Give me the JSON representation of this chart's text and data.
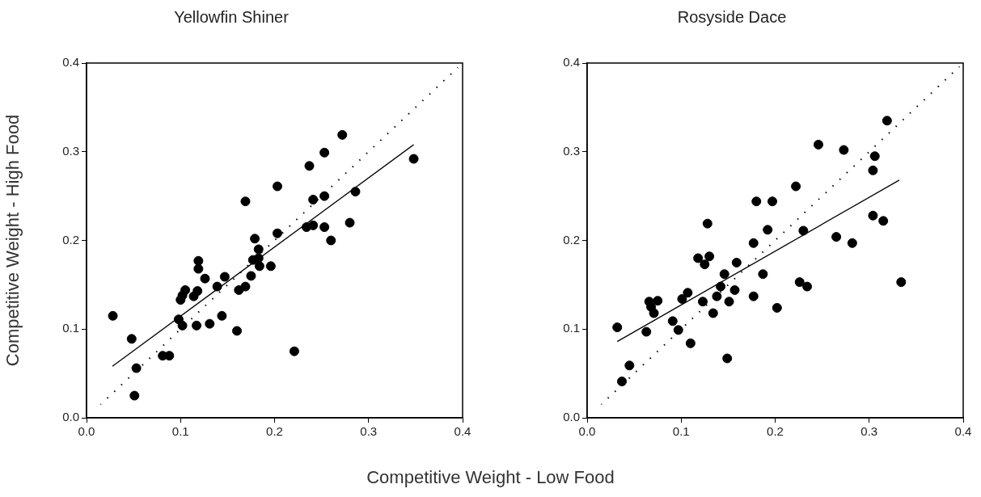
{
  "chart_data": [
    {
      "type": "scatter",
      "title": "Yellowfin Shiner",
      "ylabel": "Competitive Weight - High Food",
      "xlabel": "Competitive Weight - Low Food",
      "xlim": [
        0,
        0.4
      ],
      "ylim": [
        0,
        0.4
      ],
      "xticks": [
        {
          "value": 0,
          "label": "0.0"
        },
        0.1,
        0.2,
        0.3,
        0.4
      ],
      "yticks": [
        {
          "value": 0,
          "label": "0.0"
        },
        0.1,
        0.2,
        0.3,
        0.4
      ],
      "grid": false,
      "legend": false,
      "series": [
        {
          "type": "scatter",
          "marker": "circle",
          "color": "#000000",
          "x": [
            0.028,
            0.048,
            0.053,
            0.051,
            0.081,
            0.088,
            0.098,
            0.102,
            0.117,
            0.131,
            0.144,
            0.16,
            0.1,
            0.102,
            0.105,
            0.114,
            0.118,
            0.119,
            0.119,
            0.126,
            0.139,
            0.147,
            0.162,
            0.169,
            0.175,
            0.177,
            0.183,
            0.183,
            0.179,
            0.184,
            0.196,
            0.169,
            0.203,
            0.203,
            0.237,
            0.253,
            0.272,
            0.348,
            0.241,
            0.253,
            0.286,
            0.234,
            0.241,
            0.253,
            0.28,
            0.26,
            0.221
          ],
          "values": [
            0.115,
            0.089,
            0.056,
            0.025,
            0.07,
            0.07,
            0.111,
            0.104,
            0.104,
            0.106,
            0.115,
            0.098,
            0.133,
            0.138,
            0.144,
            0.137,
            0.143,
            0.168,
            0.177,
            0.157,
            0.148,
            0.159,
            0.144,
            0.148,
            0.16,
            0.178,
            0.18,
            0.19,
            0.202,
            0.171,
            0.171,
            0.244,
            0.261,
            0.208,
            0.284,
            0.299,
            0.319,
            0.292,
            0.246,
            0.25,
            0.255,
            0.215,
            0.217,
            0.215,
            0.22,
            0.2,
            0.075
          ]
        },
        {
          "type": "line",
          "marker": "none",
          "color": "#000000",
          "line_style": "solid",
          "x": [
            0.0275,
            0.348
          ],
          "values": [
            0.058,
            0.308
          ]
        },
        {
          "type": "line",
          "marker": "none",
          "color": "#000000",
          "line_style": "dotted",
          "x": [
            0.015,
            0.395
          ],
          "values": [
            0.015,
            0.395
          ]
        }
      ]
    },
    {
      "type": "scatter",
      "title": "Rosyside Dace",
      "xlim": [
        0,
        0.4
      ],
      "ylim": [
        0,
        0.4
      ],
      "xticks": [
        {
          "value": 0,
          "label": "0.0"
        },
        0.1,
        0.2,
        0.3,
        0.4
      ],
      "yticks": [
        {
          "value": 0,
          "label": "0.0"
        },
        0.1,
        0.2,
        0.3,
        0.4
      ],
      "grid": false,
      "legend": false,
      "series": [
        {
          "type": "scatter",
          "marker": "circle",
          "color": "#000000",
          "x": [
            0.032,
            0.037,
            0.045,
            0.063,
            0.066,
            0.075,
            0.071,
            0.068,
            0.091,
            0.097,
            0.101,
            0.107,
            0.11,
            0.118,
            0.125,
            0.13,
            0.128,
            0.123,
            0.134,
            0.138,
            0.142,
            0.146,
            0.151,
            0.149,
            0.157,
            0.159,
            0.177,
            0.177,
            0.187,
            0.192,
            0.18,
            0.197,
            0.202,
            0.222,
            0.23,
            0.226,
            0.234,
            0.246,
            0.265,
            0.273,
            0.282,
            0.306,
            0.304,
            0.304,
            0.315,
            0.334,
            0.319
          ],
          "values": [
            0.102,
            0.041,
            0.059,
            0.097,
            0.131,
            0.132,
            0.118,
            0.125,
            0.109,
            0.099,
            0.134,
            0.141,
            0.084,
            0.18,
            0.173,
            0.182,
            0.219,
            0.131,
            0.118,
            0.137,
            0.148,
            0.162,
            0.131,
            0.067,
            0.144,
            0.175,
            0.137,
            0.197,
            0.162,
            0.212,
            0.244,
            0.244,
            0.124,
            0.261,
            0.211,
            0.153,
            0.148,
            0.308,
            0.204,
            0.302,
            0.197,
            0.295,
            0.279,
            0.228,
            0.222,
            0.153,
            0.335
          ]
        },
        {
          "type": "line",
          "marker": "none",
          "color": "#000000",
          "line_style": "solid",
          "x": [
            0.032,
            0.332
          ],
          "values": [
            0.086,
            0.268
          ]
        },
        {
          "type": "line",
          "marker": "none",
          "color": "#000000",
          "line_style": "dotted",
          "x": [
            0.015,
            0.396
          ],
          "values": [
            0.015,
            0.396
          ]
        }
      ]
    }
  ]
}
